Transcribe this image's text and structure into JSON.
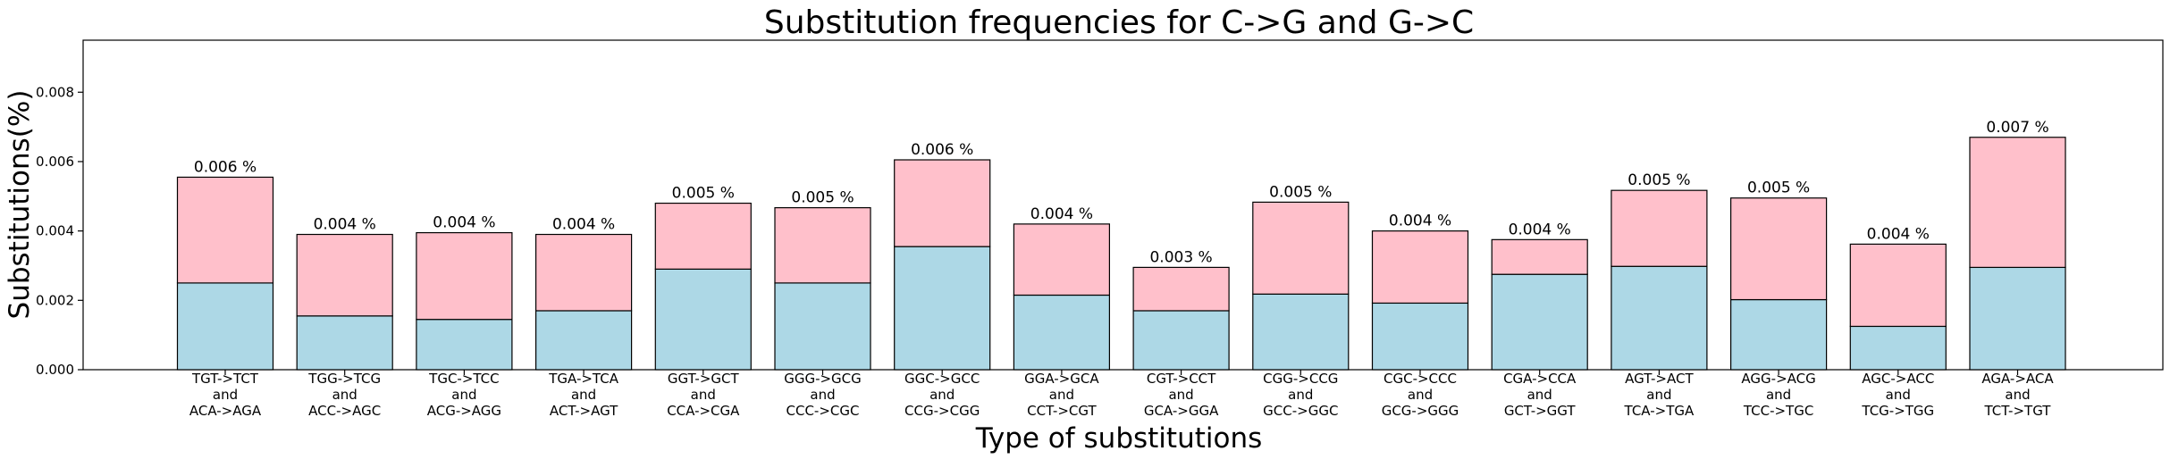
{
  "chart_data": {
    "type": "bar",
    "stacked": true,
    "title": "Substitution frequencies for C->G and G->C",
    "xlabel": "Type of substitutions",
    "ylabel": "Substitutions(%)",
    "ylim": [
      0,
      0.0095
    ],
    "yticks": [
      "0.000",
      "0.002",
      "0.004",
      "0.006",
      "0.008"
    ],
    "grid": false,
    "categories": [
      [
        "TGT->TCT",
        "and",
        "ACA->AGA"
      ],
      [
        "TGG->TCG",
        "and",
        "ACC->AGC"
      ],
      [
        "TGC->TCC",
        "and",
        "ACG->AGG"
      ],
      [
        "TGA->TCA",
        "and",
        "ACT->AGT"
      ],
      [
        "GGT->GCT",
        "and",
        "CCA->CGA"
      ],
      [
        "GGG->GCG",
        "and",
        "CCC->CGC"
      ],
      [
        "GGC->GCC",
        "and",
        "CCG->CGG"
      ],
      [
        "GGA->GCA",
        "and",
        "CCT->CGT"
      ],
      [
        "CGT->CCT",
        "and",
        "GCA->GGA"
      ],
      [
        "CGG->CCG",
        "and",
        "GCC->GGC"
      ],
      [
        "CGC->CCC",
        "and",
        "GCG->GGG"
      ],
      [
        "CGA->CCA",
        "and",
        "GCT->GGT"
      ],
      [
        "AGT->ACT",
        "and",
        "TCA->TGA"
      ],
      [
        "AGG->ACG",
        "and",
        "TCC->TGC"
      ],
      [
        "AGC->ACC",
        "and",
        "TCG->TGG"
      ],
      [
        "AGA->ACA",
        "and",
        "TCT->TGT"
      ]
    ],
    "series": [
      {
        "color": "#add8e6",
        "values": [
          0.0025,
          0.00155,
          0.00145,
          0.0017,
          0.0029,
          0.0025,
          0.00355,
          0.00215,
          0.0017,
          0.00218,
          0.00192,
          0.00275,
          0.00298,
          0.00202,
          0.00125,
          0.00295
        ]
      },
      {
        "color": "#ffc0cb",
        "values": [
          0.00305,
          0.00235,
          0.0025,
          0.0022,
          0.0019,
          0.00217,
          0.0025,
          0.00205,
          0.00125,
          0.00265,
          0.00208,
          0.001,
          0.00219,
          0.00293,
          0.00237,
          0.00375
        ]
      }
    ],
    "data_labels": [
      "0.006 %",
      "0.004 %",
      "0.004 %",
      "0.004 %",
      "0.005 %",
      "0.005 %",
      "0.006 %",
      "0.004 %",
      "0.003 %",
      "0.005 %",
      "0.004 %",
      "0.004 %",
      "0.005 %",
      "0.005 %",
      "0.004 %",
      "0.007 %"
    ]
  }
}
